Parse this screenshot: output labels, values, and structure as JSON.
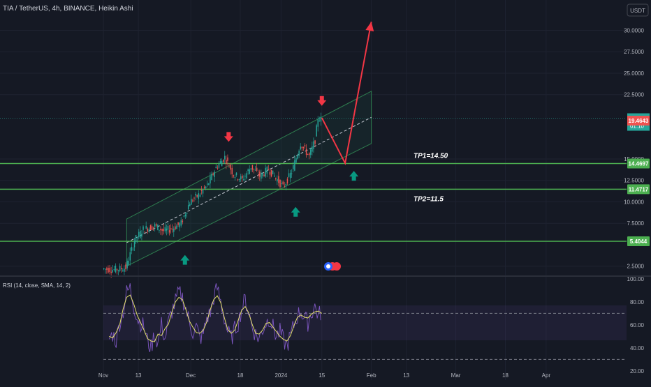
{
  "header": {
    "title": "TIA / TetherUS, 4h, BINANCE, Heikin Ashi",
    "currency_button": "USDT"
  },
  "colors": {
    "background": "#151924",
    "grid": "#1e2230",
    "axis_text": "#b2b5be",
    "candle_up": "#26a69a",
    "candle_down": "#ef5350",
    "support_line": "#4caf50",
    "arrow_down": "#f23645",
    "arrow_up": "#089981",
    "channel_border": "#2e7d4f",
    "projection": "#f23645",
    "rsi_line": "#7e57c2",
    "rsi_sma": "#e3e06a"
  },
  "icons": [
    "arrow-down-marker-icon",
    "arrow-up-marker-icon",
    "events-flag-icon"
  ],
  "chart_data": {
    "type": "line",
    "title": "TIA / TetherUS, 4h, BINANCE, Heikin Ashi",
    "xlabel": "",
    "ylabel": "",
    "x_ticks": [
      "Nov",
      "13",
      "Dec",
      "18",
      "2024",
      "15",
      "Feb",
      "13",
      "Mar",
      "18",
      "Apr"
    ],
    "y_ticks": [
      "30.0000",
      "27.5000",
      "25.0000",
      "22.5000",
      "15.0000",
      "12.5000",
      "10.0000",
      "7.5000",
      "2.5000"
    ],
    "ylim": [
      1.5,
      31.5
    ],
    "grid": true,
    "series": [
      {
        "name": "",
        "x": [
          "2023-11-01",
          "2023-11-05",
          "2023-11-09",
          "2023-11-12",
          "2023-11-15",
          "2023-11-19",
          "2023-11-22",
          "2023-11-25",
          "2023-11-28",
          "2023-12-01",
          "2023-12-04",
          "2023-12-07",
          "2023-12-10",
          "2023-12-13",
          "2023-12-16",
          "2023-12-19",
          "2023-12-22",
          "2023-12-25",
          "2023-12-28",
          "2023-12-31",
          "2024-01-02",
          "2024-01-05",
          "2024-01-08",
          "2024-01-11",
          "2024-01-13",
          "2024-01-14",
          "2024-01-15"
        ],
        "y": [
          2.2,
          2.1,
          2.3,
          5.5,
          6.8,
          7.2,
          6.6,
          6.9,
          7.5,
          10.0,
          10.8,
          11.9,
          14.0,
          15.2,
          13.2,
          12.6,
          14.1,
          13.0,
          13.8,
          12.6,
          11.7,
          13.5,
          16.8,
          15.3,
          17.2,
          19.8,
          19.6
        ]
      }
    ],
    "current_price": "19.7516",
    "countdown": "01:10",
    "secondary_price": "19.4643",
    "horizontal_levels": [
      {
        "value": "14.4697",
        "price": 14.4697
      },
      {
        "value": "11.4717",
        "price": 11.4717
      },
      {
        "value": "5.4044",
        "price": 5.4044
      }
    ],
    "annotations": [
      {
        "text": "TP1=14.50"
      },
      {
        "text": "TP2=11.5"
      }
    ],
    "channel": {
      "start": [
        "2023-11-09",
        2.5,
        8.0
      ],
      "end": [
        "2024-02-01",
        16.8,
        22.9
      ]
    },
    "projection_path": [
      [
        "2024-01-15",
        19.8
      ],
      [
        "2024-01-23",
        14.5
      ],
      [
        "2024-02-01",
        31.0
      ]
    ],
    "markers": [
      {
        "type": "down",
        "date": "2023-12-14",
        "price": 17.4
      },
      {
        "type": "down",
        "date": "2024-01-15",
        "price": 21.6
      },
      {
        "type": "up",
        "date": "2023-11-29",
        "price": 3.4
      },
      {
        "type": "up",
        "date": "2024-01-06",
        "price": 9.0
      },
      {
        "type": "up",
        "date": "2024-01-26",
        "price": 13.2
      }
    ],
    "rsi": {
      "label": "RSI (14, close, SMA, 14, 2)",
      "y_ticks": [
        "100.00",
        "80.00",
        "60.00",
        "40.00",
        "20.00"
      ],
      "ylim": [
        12,
        100
      ],
      "upper_band": 70,
      "lower_band": 30,
      "values": [
        48,
        52,
        46,
        62,
        72,
        88,
        92,
        78,
        66,
        62,
        58,
        46,
        40,
        52,
        44,
        60,
        48,
        62,
        72,
        80,
        88,
        84,
        74,
        62,
        54,
        58,
        48,
        52,
        66,
        70,
        84,
        92,
        80,
        66,
        54,
        48,
        56,
        62,
        74,
        82,
        72,
        58,
        52,
        48,
        56,
        62,
        66,
        58,
        50,
        54,
        46,
        42,
        50,
        60,
        68,
        72,
        66,
        62,
        70,
        76,
        68,
        72
      ]
    }
  }
}
